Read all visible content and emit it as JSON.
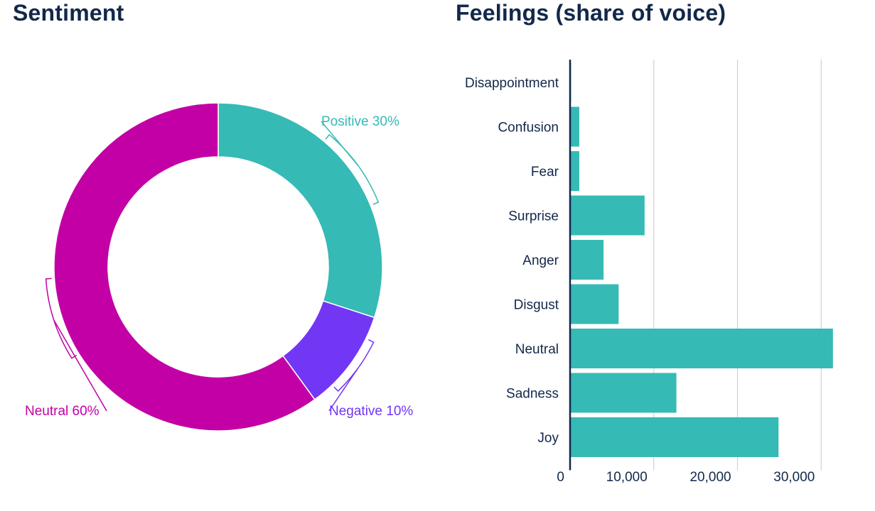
{
  "chart_data": [
    {
      "type": "pie",
      "title": "Sentiment",
      "donut": true,
      "slices": [
        {
          "label": "Positive",
          "value": 30,
          "display": "Positive 30%",
          "color": "#35bab5"
        },
        {
          "label": "Negative",
          "value": 10,
          "display": "Negative 10%",
          "color": "#7236f5"
        },
        {
          "label": "Neutral",
          "value": 60,
          "display": "Neutral 60%",
          "color": "#c300a5"
        }
      ]
    },
    {
      "type": "bar",
      "orientation": "horizontal",
      "title": "Feelings (share of voice)",
      "categories": [
        "Disappointment",
        "Confusion",
        "Fear",
        "Surprise",
        "Anger",
        "Disgust",
        "Neutral",
        "Sadness",
        "Joy"
      ],
      "values": [
        100,
        1100,
        1100,
        8900,
        4000,
        5800,
        31400,
        12700,
        24900
      ],
      "color": "#35bab5",
      "xlim": [
        0,
        31500
      ],
      "xticks": [
        0,
        10000,
        20000,
        30000
      ],
      "xtick_labels": [
        "0",
        "10,000",
        "20,000",
        "30,000"
      ],
      "grid": true
    }
  ]
}
